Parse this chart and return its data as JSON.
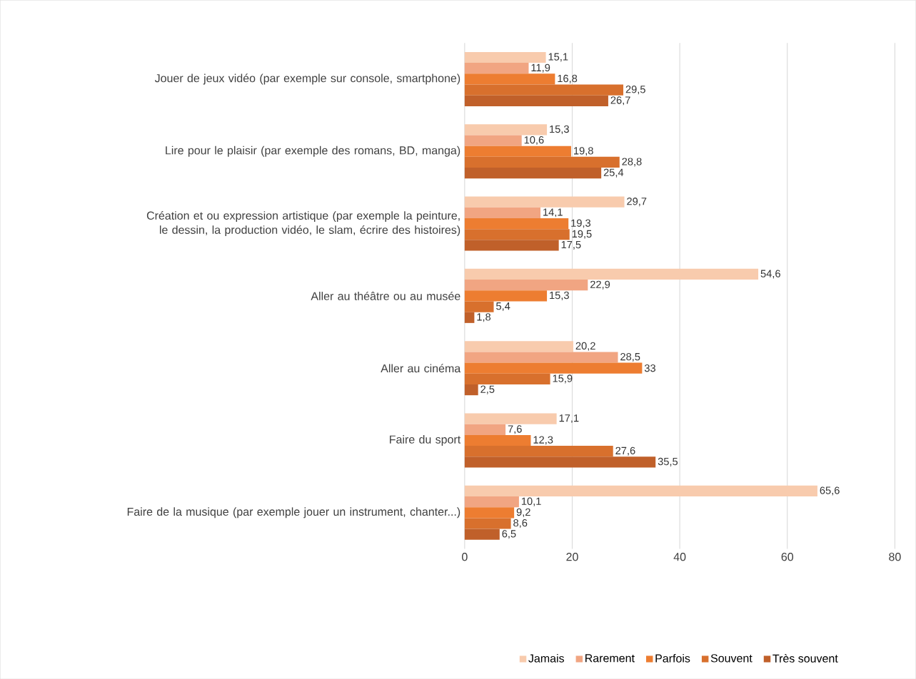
{
  "chart_data": {
    "type": "bar",
    "orientation": "horizontal",
    "categories": [
      "Jouer de jeux vidéo (par exemple sur console, smartphone)",
      "Lire pour le plaisir (par exemple des romans, BD, manga)",
      "Création et ou expression artistique (par exemple la peinture, le dessin, la production vidéo, le slam, écrire des histoires)",
      "Aller au théâtre ou au musée",
      "Aller au cinéma",
      "Faire du sport",
      "Faire de la musique (par exemple jouer un instrument, chanter...)"
    ],
    "series": [
      {
        "name": "Jamais",
        "color": "#f8cbad",
        "values": [
          15.1,
          15.3,
          29.7,
          54.6,
          20.2,
          17.1,
          65.6
        ],
        "value_labels": [
          "15,1",
          "15,3",
          "29,7",
          "54,6",
          "20,2",
          "17,1",
          "65,6"
        ]
      },
      {
        "name": "Rarement",
        "color": "#f1a582",
        "values": [
          11.9,
          10.6,
          14.1,
          22.9,
          28.5,
          7.6,
          10.1
        ],
        "value_labels": [
          "11,9",
          "10,6",
          "14,1",
          "22,9",
          "28,5",
          "7,6",
          "10,1"
        ]
      },
      {
        "name": "Parfois",
        "color": "#ed7d31",
        "values": [
          16.8,
          19.8,
          19.3,
          15.3,
          33,
          12.3,
          9.2
        ],
        "value_labels": [
          "16,8",
          "19,8",
          "19,3",
          "15,3",
          "33",
          "12,3",
          "9,2"
        ]
      },
      {
        "name": "Souvent",
        "color": "#d8702d",
        "values": [
          29.5,
          28.8,
          19.5,
          5.4,
          15.9,
          27.6,
          8.6
        ],
        "value_labels": [
          "29,5",
          "28,8",
          "19,5",
          "5,4",
          "15,9",
          "27,6",
          "8,6"
        ]
      },
      {
        "name": "Très souvent",
        "color": "#c0602a",
        "values": [
          26.7,
          25.4,
          17.5,
          1.8,
          2.5,
          35.5,
          6.5
        ],
        "value_labels": [
          "26,7",
          "25,4",
          "17,5",
          "1,8",
          "2,5",
          "35,5",
          "6,5"
        ]
      }
    ],
    "xlim": [
      0,
      80
    ],
    "xticks": [
      0,
      20,
      40,
      60,
      80
    ],
    "grid": "x",
    "legend": "bottom"
  }
}
